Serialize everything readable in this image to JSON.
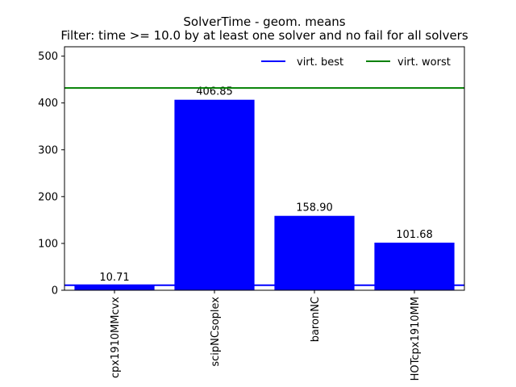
{
  "chart_data": {
    "type": "bar",
    "title": "SolverTime - geom. means",
    "subtitle": "Filter: time >= 10.0 by at least one solver and no fail for all solvers",
    "categories": [
      "cpx1910MMcvx",
      "scipNCsoplex",
      "baronNC",
      "HOTcpx1910MM"
    ],
    "values": [
      10.71,
      406.85,
      158.9,
      101.68
    ],
    "value_labels": [
      "10.71",
      "406.85",
      "158.90",
      "101.68"
    ],
    "ylim": [
      0,
      520
    ],
    "yticks": [
      0,
      100,
      200,
      300,
      400,
      500
    ],
    "bar_color": "#0000ff",
    "reference_lines": [
      {
        "name": "virt. best",
        "value": 10.71,
        "color": "#0000ff"
      },
      {
        "name": "virt. worst",
        "value": 432,
        "color": "#008000"
      }
    ],
    "legend": {
      "placement": "top-right",
      "entries": [
        "virt. best",
        "virt. worst"
      ]
    },
    "grid": false
  }
}
